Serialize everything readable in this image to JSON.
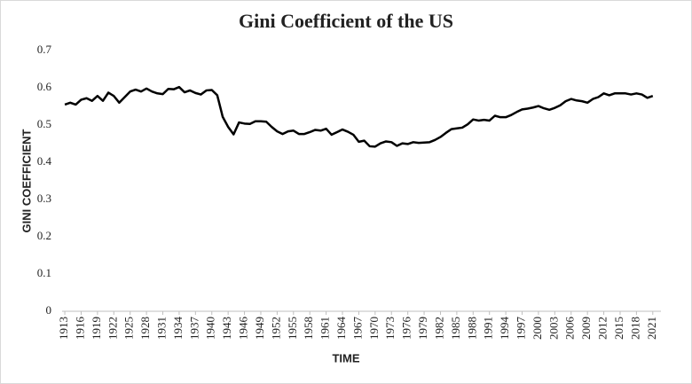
{
  "chart_data": {
    "type": "line",
    "title": "Gini Coefficient of the US",
    "x_label": "TIME",
    "y_label": "GINI COEFFICIENT",
    "x": [
      1913,
      1914,
      1915,
      1916,
      1917,
      1918,
      1919,
      1920,
      1921,
      1922,
      1923,
      1924,
      1925,
      1926,
      1927,
      1928,
      1929,
      1930,
      1931,
      1932,
      1933,
      1934,
      1935,
      1936,
      1937,
      1938,
      1939,
      1940,
      1941,
      1942,
      1943,
      1944,
      1945,
      1946,
      1947,
      1948,
      1949,
      1950,
      1951,
      1952,
      1953,
      1954,
      1955,
      1956,
      1957,
      1958,
      1959,
      1960,
      1961,
      1962,
      1963,
      1964,
      1965,
      1966,
      1967,
      1968,
      1969,
      1970,
      1971,
      1972,
      1973,
      1974,
      1975,
      1976,
      1977,
      1978,
      1979,
      1980,
      1981,
      1982,
      1983,
      1984,
      1985,
      1986,
      1987,
      1988,
      1989,
      1990,
      1991,
      1992,
      1993,
      1994,
      1995,
      1996,
      1997,
      1998,
      1999,
      2000,
      2001,
      2002,
      2003,
      2004,
      2005,
      2006,
      2007,
      2008,
      2009,
      2010,
      2011,
      2012,
      2013,
      2014,
      2015,
      2016,
      2017,
      2018,
      2019,
      2020,
      2021
    ],
    "series": [
      {
        "name": "Gini",
        "color": "#000000",
        "values": [
          0.555,
          0.56,
          0.555,
          0.568,
          0.572,
          0.565,
          0.578,
          0.565,
          0.587,
          0.578,
          0.56,
          0.575,
          0.59,
          0.595,
          0.59,
          0.598,
          0.59,
          0.585,
          0.583,
          0.597,
          0.596,
          0.602,
          0.588,
          0.593,
          0.586,
          0.582,
          0.593,
          0.594,
          0.58,
          0.522,
          0.495,
          0.475,
          0.507,
          0.504,
          0.503,
          0.51,
          0.51,
          0.509,
          0.495,
          0.483,
          0.476,
          0.483,
          0.485,
          0.476,
          0.476,
          0.481,
          0.487,
          0.485,
          0.49,
          0.474,
          0.481,
          0.488,
          0.482,
          0.474,
          0.455,
          0.458,
          0.443,
          0.442,
          0.451,
          0.456,
          0.454,
          0.444,
          0.451,
          0.449,
          0.454,
          0.452,
          0.453,
          0.454,
          0.46,
          0.468,
          0.479,
          0.489,
          0.491,
          0.493,
          0.502,
          0.515,
          0.512,
          0.514,
          0.512,
          0.525,
          0.521,
          0.521,
          0.527,
          0.535,
          0.542,
          0.544,
          0.547,
          0.551,
          0.545,
          0.541,
          0.546,
          0.553,
          0.564,
          0.57,
          0.566,
          0.564,
          0.56,
          0.57,
          0.575,
          0.585,
          0.58,
          0.585,
          0.585,
          0.585,
          0.582,
          0.585,
          0.582,
          0.573,
          0.578
        ]
      }
    ],
    "xlim": [
      1912.5,
      2022.5
    ],
    "xticks": [
      1913,
      1916,
      1919,
      1922,
      1925,
      1928,
      1931,
      1934,
      1937,
      1940,
      1943,
      1946,
      1949,
      1952,
      1955,
      1958,
      1961,
      1964,
      1967,
      1970,
      1973,
      1976,
      1979,
      1982,
      1985,
      1988,
      1991,
      1994,
      1997,
      2000,
      2003,
      2006,
      2009,
      2012,
      2015,
      2018,
      2021
    ],
    "ylim": [
      0,
      0.7
    ],
    "yticks": [
      0,
      0.1,
      0.2,
      0.3,
      0.4,
      0.5,
      0.6,
      0.7
    ],
    "grid": false
  }
}
